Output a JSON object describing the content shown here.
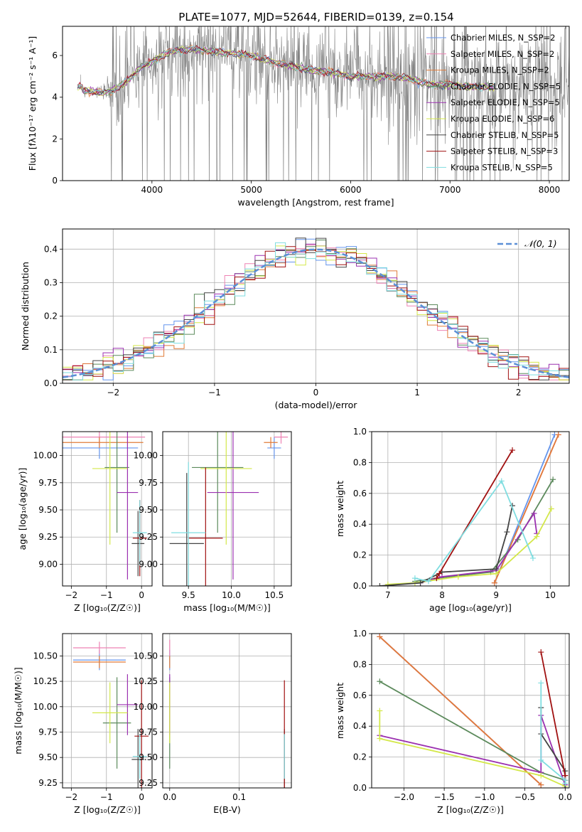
{
  "title": "PLATE=1077, MJD=52644, FIBERID=0139, z=0.154",
  "colors": {
    "chabrier_miles": "#6495ed",
    "salpeter_miles": "#ee82b4",
    "kroupa_miles": "#e07b39",
    "chabrier_elodie": "#5c8a5c",
    "salpeter_elodie": "#9b30b0",
    "kroupa_elodie": "#d4e84a",
    "chabrier_stelib": "#444444",
    "salpeter_stelib": "#a01010",
    "kroupa_stelib": "#7fdde0",
    "data": "#808080"
  },
  "chart_data": [
    {
      "type": "line",
      "xlabel": "wavelength [Angstrom, rest frame]",
      "ylabel": "Flux [fλ10⁻¹⁷ erg cm⁻² s⁻¹ A⁻¹]",
      "xlim": [
        3100,
        8200
      ],
      "ylim": [
        0,
        7.4
      ],
      "xticks": [
        4000,
        5000,
        6000,
        7000,
        8000
      ],
      "yticks": [
        0,
        2,
        4,
        6
      ],
      "legend": "upper right",
      "legend_entries": [
        "Chabrier MILES, N_SSP=2",
        "Salpeter MILES, N_SSP=2",
        "Kroupa MILES, N_SSP=2",
        "Chabrier ELODIE, N_SSP=5",
        "Salpeter ELODIE, N_SSP=5",
        "Kroupa ELODIE, N_SSP=6",
        "Chabrier STELIB, N_SSP=5",
        "Salpeter STELIB, N_SSP=3",
        "Kroupa STELIB, N_SSP=5"
      ],
      "model_envelope": {
        "x": [
          3300,
          3400,
          3500,
          3600,
          3700,
          3800,
          3900,
          4000,
          4100,
          4200,
          4400,
          4600,
          4800,
          5000,
          5200,
          5400,
          5600,
          5800,
          6000,
          6200,
          6400,
          6600,
          6800,
          7000,
          7200
        ],
        "y": [
          4.3,
          4.3,
          4.2,
          4.3,
          4.6,
          5.0,
          5.5,
          5.7,
          6.0,
          6.2,
          6.3,
          6.2,
          6.1,
          6.0,
          5.7,
          5.5,
          5.3,
          5.2,
          5.0,
          5.0,
          5.0,
          4.9,
          4.6,
          4.6,
          4.5
        ]
      }
    },
    {
      "type": "step",
      "xlabel": "(data-model)/error",
      "ylabel": "Normed distribution",
      "xlim": [
        -2.5,
        2.5
      ],
      "ylim": [
        0,
        0.46
      ],
      "xticks": [
        -2,
        -1,
        0,
        1,
        2
      ],
      "yticks": [
        0.0,
        0.1,
        0.2,
        0.3,
        0.4
      ],
      "legend_entries": [
        "𝒩(0, 1)"
      ],
      "grid": true
    },
    {
      "type": "errorbar",
      "xlabel": "Z [log₁₀(Z/Z☉)]",
      "ylabel": "age  [log₁₀(age/yr)]",
      "xlim": [
        -2.25,
        0.3
      ],
      "ylim": [
        8.8,
        10.22
      ],
      "xticks": [
        -2,
        -1,
        0
      ],
      "yticks": [
        9.0,
        9.25,
        9.5,
        9.75,
        10.0
      ],
      "grid": true,
      "points": [
        {
          "series": "chabrier_miles",
          "x": -1.2,
          "xerr": 1.1,
          "y": 10.07,
          "yerr": 0.1
        },
        {
          "series": "salpeter_miles",
          "x": -1.2,
          "xerr": 1.3,
          "y": 10.17,
          "yerr": 0.06
        },
        {
          "series": "kroupa_miles",
          "x": -1.2,
          "xerr": 1.25,
          "y": 10.12,
          "yerr": 0.05
        },
        {
          "series": "chabrier_elodie",
          "x": -0.7,
          "xerr": 0.35,
          "y": 9.89,
          "yerr": 0.6
        },
        {
          "series": "salpeter_elodie",
          "x": -0.4,
          "xerr": 0.3,
          "y": 9.66,
          "yerr": 0.8
        },
        {
          "series": "kroupa_elodie",
          "x": -0.9,
          "xerr": 0.5,
          "y": 9.88,
          "yerr": 0.7
        },
        {
          "series": "chabrier_stelib",
          "x": -0.1,
          "xerr": 0.18,
          "y": 9.19,
          "yerr": 0.3
        },
        {
          "series": "salpeter_stelib",
          "x": -0.05,
          "xerr": 0.2,
          "y": 9.24,
          "yerr": 0.35
        },
        {
          "series": "kroupa_stelib",
          "x": -0.05,
          "xerr": 0.2,
          "y": 9.29,
          "yerr": 0.3
        }
      ]
    },
    {
      "type": "errorbar",
      "xlabel": "mass [log₁₀(M/M☉)]",
      "ylabel": "",
      "xlim": [
        9.2,
        10.7
      ],
      "ylim": [
        8.8,
        10.22
      ],
      "xticks": [
        9.5,
        10.0,
        10.5
      ],
      "yticks": [
        9.0,
        9.25,
        9.5,
        9.75,
        10.0
      ],
      "grid": true,
      "points": [
        {
          "series": "chabrier_miles",
          "x": 10.5,
          "xerr": 0.08,
          "y": 10.07,
          "yerr": 0.1
        },
        {
          "series": "salpeter_miles",
          "x": 10.58,
          "xerr": 0.08,
          "y": 10.17,
          "yerr": 0.06
        },
        {
          "series": "kroupa_miles",
          "x": 10.46,
          "xerr": 0.08,
          "y": 10.12,
          "yerr": 0.05
        },
        {
          "series": "chabrier_elodie",
          "x": 9.84,
          "xerr": 0.3,
          "y": 9.89,
          "yerr": 0.6
        },
        {
          "series": "salpeter_elodie",
          "x": 10.02,
          "xerr": 0.3,
          "y": 9.66,
          "yerr": 0.8
        },
        {
          "series": "kroupa_elodie",
          "x": 9.94,
          "xerr": 0.3,
          "y": 9.88,
          "yerr": 0.7
        },
        {
          "series": "chabrier_stelib",
          "x": 9.48,
          "xerr": 0.2,
          "y": 9.19,
          "yerr": 0.65
        },
        {
          "series": "salpeter_stelib",
          "x": 9.7,
          "xerr": 0.2,
          "y": 9.24,
          "yerr": 0.65
        },
        {
          "series": "kroupa_stelib",
          "x": 9.5,
          "xerr": 0.2,
          "y": 9.29,
          "yerr": 0.65
        }
      ]
    },
    {
      "type": "line",
      "xlabel": "age  [log₁₀(age/yr)]",
      "ylabel": "mass weight",
      "xlim": [
        6.7,
        10.35
      ],
      "ylim": [
        0,
        1
      ],
      "xticks": [
        7,
        8,
        9,
        10
      ],
      "yticks": [
        0.0,
        0.2,
        0.4,
        0.6,
        0.8,
        1.0
      ],
      "grid": true,
      "series": [
        {
          "key": "chabrier_miles",
          "x": [
            8.97,
            10.08
          ],
          "y": [
            0.02,
            0.98
          ]
        },
        {
          "key": "salpeter_miles",
          "x": [
            8.97,
            10.15
          ],
          "y": [
            0.02,
            0.98
          ]
        },
        {
          "key": "kroupa_miles",
          "x": [
            8.97,
            10.15
          ],
          "y": [
            0.02,
            0.98
          ]
        },
        {
          "key": "chabrier_elodie",
          "x": [
            7.5,
            7.9,
            8.9,
            9.4,
            10.05
          ],
          "y": [
            0.03,
            0.05,
            0.09,
            0.3,
            0.69
          ]
        },
        {
          "key": "salpeter_elodie",
          "x": [
            7.6,
            8.0,
            9.0,
            9.7,
            9.75
          ],
          "y": [
            0.02,
            0.06,
            0.1,
            0.47,
            0.34
          ]
        },
        {
          "key": "kroupa_elodie",
          "x": [
            7.0,
            7.5,
            8.3,
            9.0,
            9.75,
            10.02
          ],
          "y": [
            0.01,
            0.02,
            0.06,
            0.08,
            0.32,
            0.5
          ]
        },
        {
          "key": "chabrier_stelib",
          "x": [
            6.85,
            7.6,
            8.0,
            9.0,
            9.2,
            9.3
          ],
          "y": [
            0.0,
            0.02,
            0.09,
            0.11,
            0.35,
            0.52
          ]
        },
        {
          "key": "salpeter_stelib",
          "x": [
            7.9,
            7.95,
            9.3
          ],
          "y": [
            0.05,
            0.08,
            0.88
          ]
        },
        {
          "key": "kroupa_stelib",
          "x": [
            7.5,
            7.75,
            9.1,
            9.68
          ],
          "y": [
            0.05,
            0.03,
            0.68,
            0.18
          ]
        }
      ]
    },
    {
      "type": "errorbar",
      "xlabel": "Z [log₁₀(Z/Z☉)]",
      "ylabel": "mass [log₁₀(M/M☉)]",
      "xlim": [
        -2.25,
        0.3
      ],
      "ylim": [
        9.2,
        10.72
      ],
      "xticks": [
        -2,
        -1,
        0
      ],
      "yticks": [
        9.25,
        9.5,
        9.75,
        10.0,
        10.25,
        10.5
      ],
      "grid": true,
      "points": [
        {
          "series": "chabrier_miles",
          "x": -1.2,
          "xerr": 0.75,
          "y": 10.46,
          "yerr": 0.1
        },
        {
          "series": "salpeter_miles",
          "x": -1.2,
          "xerr": 0.75,
          "y": 10.58,
          "yerr": 0.06
        },
        {
          "series": "kroupa_miles",
          "x": -1.2,
          "xerr": 0.75,
          "y": 10.44,
          "yerr": 0.06
        },
        {
          "series": "chabrier_elodie",
          "x": -0.7,
          "xerr": 0.4,
          "y": 9.84,
          "yerr": 0.45
        },
        {
          "series": "salpeter_elodie",
          "x": -0.4,
          "xerr": 0.3,
          "y": 10.02,
          "yerr": 0.3
        },
        {
          "series": "kroupa_elodie",
          "x": -0.9,
          "xerr": 0.5,
          "y": 9.94,
          "yerr": 0.3
        },
        {
          "series": "chabrier_stelib",
          "x": -0.1,
          "xerr": 0.18,
          "y": 9.48,
          "yerr": 0.3
        },
        {
          "series": "salpeter_stelib",
          "x": 0.0,
          "xerr": 0.2,
          "y": 9.71,
          "yerr": 0.55
        },
        {
          "series": "kroupa_stelib",
          "x": -0.05,
          "xerr": 0.2,
          "y": 9.51,
          "yerr": 0.22
        }
      ]
    },
    {
      "type": "errorbar",
      "xlabel": "E(B-V)",
      "ylabel": "",
      "xlim": [
        -0.01,
        0.175
      ],
      "ylim": [
        9.2,
        10.72
      ],
      "xticks": [
        0.0,
        0.1
      ],
      "yticks": [
        9.25,
        9.5,
        9.75,
        10.0,
        10.25,
        10.5
      ],
      "grid": true,
      "points": [
        {
          "series": "chabrier_miles",
          "x": 0.0,
          "xerr": 0.0,
          "y": 10.46,
          "yerr": 0.1
        },
        {
          "series": "salpeter_miles",
          "x": 0.0,
          "xerr": 0.0,
          "y": 10.58,
          "yerr": 0.08
        },
        {
          "series": "kroupa_miles",
          "x": 0.0,
          "xerr": 0.0,
          "y": 10.44,
          "yerr": 0.06
        },
        {
          "series": "chabrier_elodie",
          "x": 0.0,
          "xerr": 0.0,
          "y": 9.84,
          "yerr": 0.45
        },
        {
          "series": "salpeter_elodie",
          "x": 0.0,
          "xerr": 0.0,
          "y": 10.02,
          "yerr": 0.3
        },
        {
          "series": "kroupa_elodie",
          "x": 0.0,
          "xerr": 0.0,
          "y": 9.94,
          "yerr": 0.3
        },
        {
          "series": "chabrier_stelib",
          "x": 0.165,
          "xerr": 0.0,
          "y": 9.48,
          "yerr": 0.3
        },
        {
          "series": "salpeter_stelib",
          "x": 0.165,
          "xerr": 0.0,
          "y": 9.71,
          "yerr": 0.55
        },
        {
          "series": "kroupa_stelib",
          "x": 0.165,
          "xerr": 0.0,
          "y": 9.51,
          "yerr": 0.22
        }
      ]
    },
    {
      "type": "line",
      "xlabel": "Z [log₁₀(Z/Z☉)]",
      "ylabel": "mass weight",
      "xlim": [
        -2.4,
        0.05
      ],
      "ylim": [
        0,
        1
      ],
      "xticks": [
        -2.0,
        -1.5,
        -1.0,
        -0.5,
        0.0
      ],
      "yticks": [
        0.0,
        0.2,
        0.4,
        0.6,
        0.8,
        1.0
      ],
      "grid": true,
      "series": [
        {
          "key": "chabrier_miles",
          "x": [
            -2.3,
            -0.3
          ],
          "y": [
            0.98,
            0.02
          ]
        },
        {
          "key": "salpeter_miles",
          "x": [
            -2.3,
            -0.3
          ],
          "y": [
            0.98,
            0.02
          ]
        },
        {
          "key": "kroupa_miles",
          "x": [
            -2.3,
            -0.3
          ],
          "y": [
            0.98,
            0.02
          ]
        },
        {
          "key": "chabrier_elodie",
          "x": [
            -2.3,
            -0.3,
            0.0
          ],
          "y": [
            0.69,
            0.1,
            0.05
          ]
        },
        {
          "key": "salpeter_elodie",
          "x": [
            -2.3,
            -0.3,
            -0.3,
            0.0
          ],
          "y": [
            0.34,
            0.1,
            0.47,
            0.02
          ]
        },
        {
          "key": "kroupa_elodie",
          "x": [
            -2.3,
            -2.3,
            -0.3,
            0.0
          ],
          "y": [
            0.5,
            0.32,
            0.08,
            0.01
          ]
        },
        {
          "key": "chabrier_stelib",
          "x": [
            -0.3,
            -0.3,
            0.0,
            0.0
          ],
          "y": [
            0.52,
            0.35,
            0.11,
            0.0
          ]
        },
        {
          "key": "salpeter_stelib",
          "x": [
            -0.3,
            0.0,
            0.0
          ],
          "y": [
            0.88,
            0.08,
            0.05
          ]
        },
        {
          "key": "kroupa_stelib",
          "x": [
            -0.3,
            -0.3,
            0.0,
            0.0
          ],
          "y": [
            0.68,
            0.18,
            0.05,
            0.03
          ]
        }
      ]
    }
  ]
}
